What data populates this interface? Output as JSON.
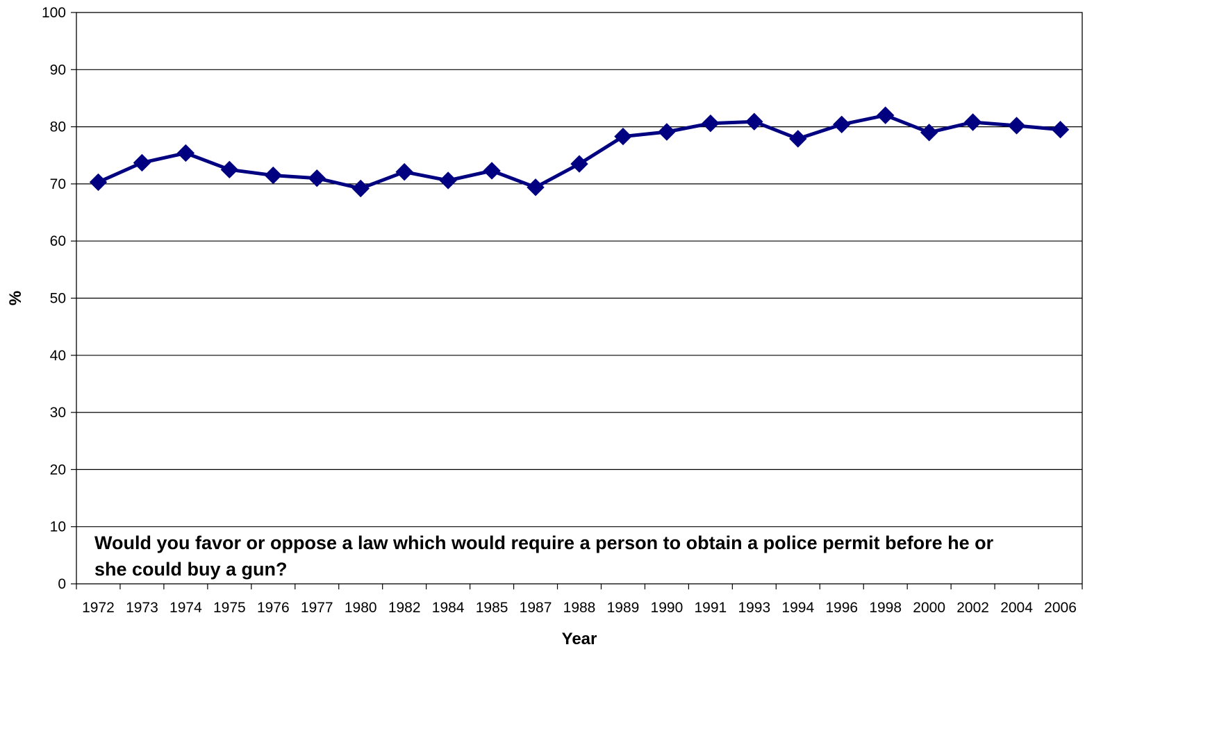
{
  "chart_data": {
    "type": "line",
    "title": "",
    "xlabel": "Year",
    "ylabel": "%",
    "ylim": [
      0,
      100
    ],
    "yticks": [
      "0",
      "10",
      "20",
      "30",
      "40",
      "50",
      "60",
      "70",
      "80",
      "90",
      "100"
    ],
    "grid": "horizontal",
    "legend": "none",
    "categories": [
      "1972",
      "1973",
      "1974",
      "1975",
      "1976",
      "1977",
      "1980",
      "1982",
      "1984",
      "1985",
      "1987",
      "1988",
      "1989",
      "1990",
      "1991",
      "1993",
      "1994",
      "1996",
      "1998",
      "2000",
      "2002",
      "2004",
      "2006"
    ],
    "series": [
      {
        "values": [
          70.3,
          73.7,
          75.4,
          72.5,
          71.5,
          71.0,
          69.2,
          72.1,
          70.6,
          72.3,
          69.4,
          73.5,
          78.3,
          79.1,
          80.6,
          80.9,
          77.9,
          80.4,
          82.0,
          79.0,
          80.8,
          80.2,
          79.5
        ],
        "color": "#000080"
      }
    ],
    "annotation": {
      "line1": "Would you favor or oppose a law which would require a person to obtain a police permit before he or",
      "line2": "she could buy a gun?"
    }
  }
}
